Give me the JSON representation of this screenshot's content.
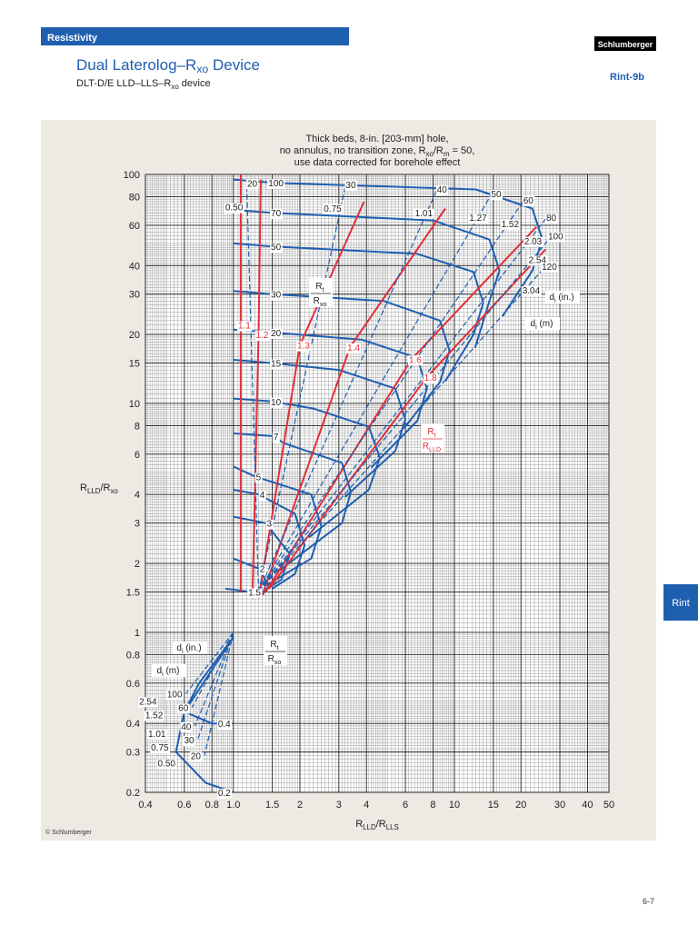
{
  "header": {
    "section": "Resistivity",
    "title": [
      "Dual Laterolog–R",
      "xo",
      " Device"
    ],
    "subtitle": [
      "DLT-D/E LLD–LLS–R",
      "xo",
      " device"
    ],
    "logo": "Schlumberger",
    "code": "Rint-9b",
    "tab": "Rint",
    "copyright": "© Schlumberger",
    "page": "6-7"
  },
  "chart_data": {
    "type": "line",
    "title_lines": [
      [
        "Thick beds, 8-in. [203-mm] hole,"
      ],
      [
        "no annulus, no transition zone, R",
        "xo",
        "/R",
        "m",
        " = 50,"
      ],
      [
        "use data corrected for borehole effect"
      ]
    ],
    "x_label": [
      "R",
      "LLD",
      "/R",
      "LLS"
    ],
    "y_label": [
      "R",
      "LLD",
      "/R",
      "xo"
    ],
    "xscale": "log",
    "yscale": "log",
    "grid": true,
    "xlim": [
      0.4,
      50
    ],
    "ylim": [
      0.2,
      100
    ],
    "xticks": [
      0.4,
      0.6,
      0.8,
      {
        "value": 1,
        "label": "1.0"
      },
      1.5,
      2,
      3,
      4,
      6,
      8,
      10,
      15,
      20,
      30,
      40,
      50
    ],
    "yticks": [
      0.2,
      0.3,
      0.4,
      0.6,
      0.8,
      1,
      1.5,
      2,
      3,
      4,
      6,
      8,
      10,
      15,
      20,
      30,
      40,
      60,
      80,
      100
    ],
    "series": [
      {
        "name": "100",
        "color": "#1f5fb0",
        "line_style": "solid",
        "x": [
          1,
          1.5,
          12.5,
          22.5,
          25,
          22.5,
          16.5
        ],
        "y": [
          95,
          92,
          86,
          71,
          52,
          38,
          24
        ]
      },
      {
        "name": "70",
        "color": "#1f5fb0",
        "line_style": "solid",
        "x": [
          1,
          1.5,
          8,
          14.4,
          16,
          14.4,
          12.4
        ],
        "y": [
          70,
          68,
          63,
          52,
          38,
          28,
          17.5
        ]
      },
      {
        "name": "50",
        "color": "#1f5fb0",
        "line_style": "solid",
        "x": [
          1,
          1.5,
          6.8,
          12.2,
          13.5,
          12.2,
          9.1
        ],
        "y": [
          50,
          48.5,
          45,
          37.5,
          27.5,
          20,
          12.5
        ]
      },
      {
        "name": "30",
        "color": "#1f5fb0",
        "line_style": "solid",
        "x": [
          1,
          1.5,
          4.8,
          8.6,
          9.5,
          8.6,
          5.9
        ],
        "y": [
          31,
          30,
          28,
          23,
          17,
          12.4,
          7.75
        ]
      },
      {
        "name": "20",
        "color": "#1f5fb0",
        "line_style": "solid",
        "x": [
          1,
          1.5,
          3.8,
          6.8,
          7.5,
          6.8,
          4.2
        ],
        "y": [
          21,
          20.4,
          19,
          15.8,
          11.6,
          8.4,
          5.25
        ]
      },
      {
        "name": "15",
        "color": "#1f5fb0",
        "line_style": "solid",
        "x": [
          1,
          1.5,
          3,
          5.4,
          6,
          5.4,
          3.2
        ],
        "y": [
          15.5,
          15,
          14,
          11.6,
          8.5,
          6.2,
          3.9
        ]
      },
      {
        "name": "10",
        "color": "#1f5fb0",
        "line_style": "solid",
        "x": [
          1,
          1.5,
          2.3,
          4.1,
          4.6,
          4.1,
          2.2
        ],
        "y": [
          10.5,
          10.2,
          9.5,
          7.9,
          5.8,
          4.2,
          2.6
        ]
      },
      {
        "name": "7",
        "color": "#1f5fb0",
        "line_style": "solid",
        "x": [
          1,
          1.5,
          1.7,
          3.1,
          3.4,
          3.1,
          1.6
        ],
        "y": [
          7.4,
          7.2,
          6.7,
          5.5,
          4.1,
          3,
          1.85
        ]
      },
      {
        "name": "5",
        "color": "#1f5fb0",
        "line_style": "solid",
        "x": [
          1,
          1.25,
          2.25,
          2.5,
          2.25,
          1.4
        ],
        "y": [
          5.3,
          4.8,
          4,
          2.9,
          2.1,
          1.6
        ]
      },
      {
        "name": "4",
        "color": "#1f5fb0",
        "line_style": "solid",
        "x": [
          1,
          1.3,
          1.9,
          2.1,
          1.9,
          1.5
        ],
        "y": [
          4.2,
          4,
          3.3,
          2.4,
          1.8,
          1.55
        ]
      },
      {
        "name": "3",
        "color": "#1f5fb0",
        "line_style": "solid",
        "x": [
          1,
          1.4,
          1.8,
          1.65,
          1.35
        ],
        "y": [
          3.2,
          3,
          2.2,
          1.7,
          1.5
        ]
      },
      {
        "name": "2",
        "color": "#1f5fb0",
        "line_style": "solid",
        "x": [
          1,
          1.3,
          1.45,
          1.35
        ],
        "y": [
          2.1,
          1.9,
          1.6,
          1.45
        ]
      },
      {
        "name": "1.5",
        "color": "#1f5fb0",
        "line_style": "solid",
        "x": [
          0.92,
          1.2,
          1.3
        ],
        "y": [
          1.55,
          1.5,
          1.45
        ]
      },
      {
        "name": "1.1",
        "color": "#e0303a",
        "line_style": "solid",
        "x": [
          1.08,
          1.08,
          1.08
        ],
        "y": [
          1.5,
          22,
          100
        ]
      },
      {
        "name": "1.2",
        "color": "#e0303a",
        "line_style": "solid",
        "x": [
          1.22,
          1.3,
          1.33
        ],
        "y": [
          1.4,
          20,
          95
        ]
      },
      {
        "name": "1.3",
        "color": "#e0303a",
        "line_style": "solid",
        "x": [
          1.3,
          2.0,
          3.9
        ],
        "y": [
          1.4,
          18,
          76
        ]
      },
      {
        "name": "1.4",
        "color": "#e0303a",
        "line_style": "solid",
        "x": [
          1.35,
          3.37,
          9.1
        ],
        "y": [
          1.45,
          17.6,
          71
        ]
      },
      {
        "name": "1.6",
        "color": "#e0303a",
        "line_style": "solid",
        "x": [
          1.4,
          6.4,
          23.5
        ],
        "y": [
          1.5,
          15.6,
          59
        ]
      },
      {
        "name": "1.8",
        "color": "#e0303a",
        "line_style": "solid",
        "x": [
          1.45,
          7.5,
          25.8
        ],
        "y": [
          1.55,
          13,
          47
        ]
      },
      {
        "name": "20",
        "label_m": "0.50",
        "color": "#1f5fb0",
        "line_style": "dashed",
        "x": [
          1.3,
          1.15
        ],
        "y": [
          1.5,
          90
        ]
      },
      {
        "name": "30",
        "label_m": "0.75",
        "color": "#1f5fb0",
        "line_style": "dashed",
        "x": [
          1.3,
          3.21
        ],
        "y": [
          1.5,
          89
        ]
      },
      {
        "name": "40",
        "label_m": "1.01",
        "color": "#1f5fb0",
        "line_style": "dashed",
        "x": [
          1.3,
          8.3
        ],
        "y": [
          1.5,
          85
        ]
      },
      {
        "name": "50",
        "label_m": "1.27",
        "color": "#1f5fb0",
        "line_style": "dashed",
        "x": [
          1.3,
          14.6
        ],
        "y": [
          1.5,
          81
        ]
      },
      {
        "name": "60",
        "label_m": "1.52",
        "color": "#1f5fb0",
        "line_style": "dashed",
        "x": [
          1.3,
          20.4
        ],
        "y": [
          1.5,
          76
        ]
      },
      {
        "name": "80",
        "label_m": "2.03",
        "color": "#1f5fb0",
        "line_style": "dashed",
        "x": [
          1.3,
          25.9
        ],
        "y": [
          1.5,
          64
        ]
      },
      {
        "name": "100",
        "label_m": "2.54",
        "color": "#1f5fb0",
        "line_style": "dashed",
        "x": [
          1.3,
          27.1
        ],
        "y": [
          1.5,
          53
        ]
      },
      {
        "name": "120",
        "label_m": "3.04",
        "color": "#1f5fb0",
        "line_style": "dashed",
        "x": [
          1.3,
          25.4
        ],
        "y": [
          1.5,
          39
        ]
      },
      {
        "name": "0.4",
        "color": "#1f5fb0",
        "line_style": "solid",
        "x": [
          1.0,
          0.7,
          0.6,
          0.8,
          1.0
        ],
        "y": [
          0.95,
          0.6,
          0.45,
          0.4,
          0.4
        ]
      },
      {
        "name": "0.2",
        "color": "#1f5fb0",
        "line_style": "solid",
        "x": [
          1.0,
          0.6,
          0.55,
          0.75,
          1.0
        ],
        "y": [
          0.95,
          0.45,
          0.3,
          0.22,
          0.2
        ]
      },
      {
        "name": "100",
        "label_m": "2.54",
        "color": "#1f5fb0",
        "line_style": "dashed",
        "x": [
          1.0,
          0.61
        ],
        "y": [
          1.0,
          0.54
        ]
      },
      {
        "name": "60",
        "label_m": "1.52",
        "color": "#1f5fb0",
        "line_style": "dashed",
        "x": [
          1.0,
          0.65
        ],
        "y": [
          1.0,
          0.47
        ]
      },
      {
        "name": "40",
        "label_m": "1.01",
        "color": "#1f5fb0",
        "line_style": "dashed",
        "x": [
          1.0,
          0.67
        ],
        "y": [
          1.0,
          0.39
        ]
      },
      {
        "name": "30",
        "label_m": "0.75",
        "color": "#1f5fb0",
        "line_style": "dashed",
        "x": [
          1.0,
          0.69
        ],
        "y": [
          1.0,
          0.34
        ]
      },
      {
        "name": "20",
        "label_m": "0.50",
        "color": "#1f5fb0",
        "line_style": "dashed",
        "x": [
          1.0,
          0.74
        ],
        "y": [
          1.0,
          0.29
        ]
      }
    ],
    "fractions": [
      {
        "num": [
          "R",
          "t"
        ],
        "den": [
          "R",
          "xo"
        ],
        "color": "#222222"
      },
      {
        "num": [
          "R",
          "t"
        ],
        "den": [
          "R",
          "xo"
        ],
        "color": "#222222"
      },
      {
        "num": [
          "R",
          "t"
        ],
        "den": [
          "R",
          "LLD"
        ],
        "color": "#e0303a"
      }
    ],
    "di_labels": [
      [
        "d",
        "i",
        " (in.)"
      ],
      [
        "d",
        "i",
        " (m)"
      ],
      [
        "d",
        "i",
        " (in.)"
      ],
      [
        "d",
        "i",
        " (m)"
      ]
    ]
  }
}
